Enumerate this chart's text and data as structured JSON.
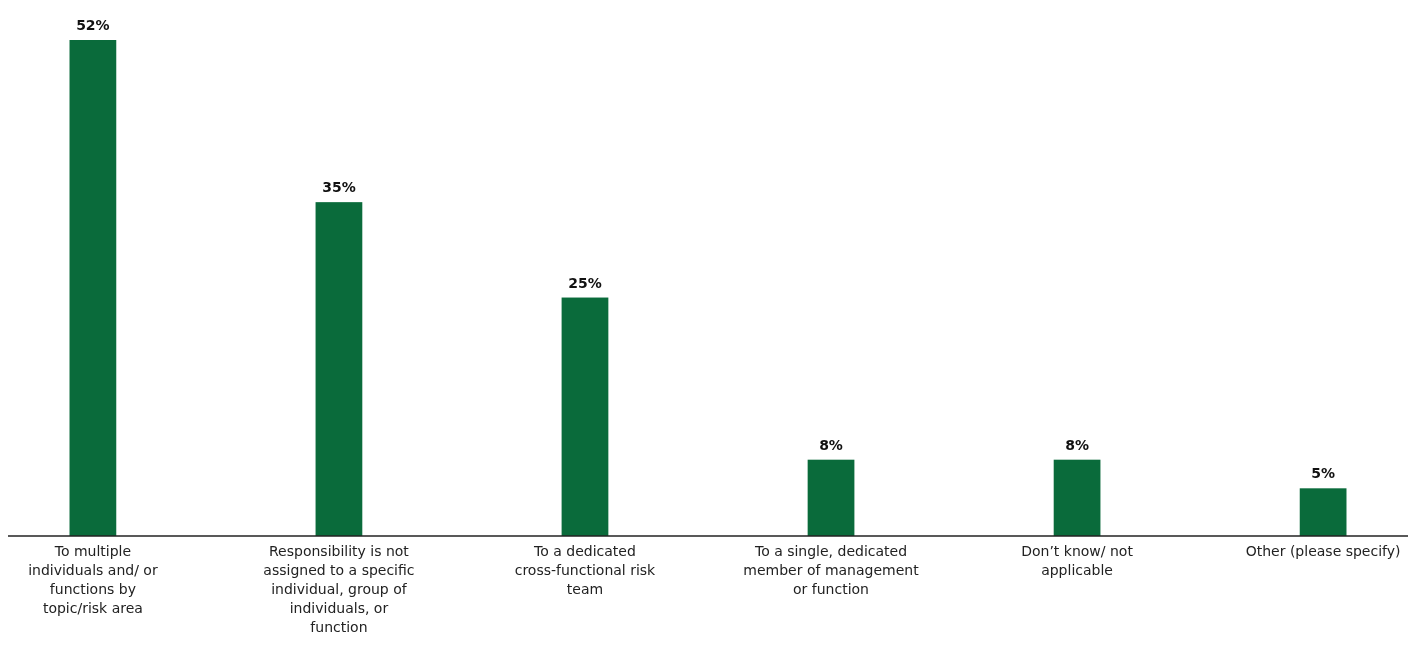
{
  "chart_data": {
    "type": "bar",
    "categories": [
      "To multiple individuals and/ or functions by topic/risk area",
      "Responsibility is not assigned to a specific individual, group of individuals, or function",
      "To a dedicated cross-functional risk team",
      "To a single, dedicated member of management or function",
      "Don’t know/ not applicable",
      "Other (please specify)"
    ],
    "values": [
      52,
      35,
      25,
      8,
      8,
      5
    ],
    "value_labels": [
      "52%",
      "35%",
      "25%",
      "8%",
      "8%",
      "5%"
    ],
    "color": "#0a6b3b"
  }
}
